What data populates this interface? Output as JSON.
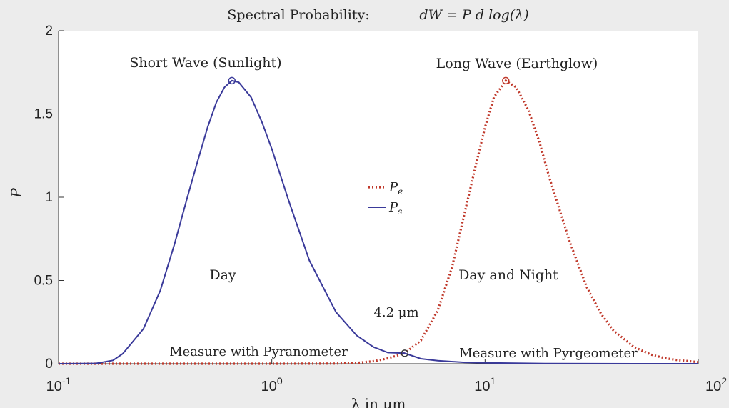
{
  "chart_data": {
    "type": "line",
    "title": "Spectral Probability:",
    "title_formula": "dW = P d log(λ)",
    "xlabel": "λ in μm",
    "ylabel": "P",
    "x_scale": "log",
    "xlim": [
      0.1,
      100
    ],
    "ylim": [
      0,
      2
    ],
    "x_ticks": [
      {
        "value": 0.1,
        "base": "10",
        "exp": "-1"
      },
      {
        "value": 1,
        "base": "10",
        "exp": "0"
      },
      {
        "value": 10,
        "base": "10",
        "exp": "1"
      },
      {
        "value": 100,
        "base": "10",
        "exp": "2"
      }
    ],
    "y_ticks": [
      "0",
      "0.5",
      "1",
      "1.5",
      "2"
    ],
    "grid": false,
    "legend_position": "center",
    "series": [
      {
        "name": "P_e",
        "legend_main": "P",
        "legend_sub": "e",
        "color": "#c0392b",
        "style": "dotted",
        "peak": {
          "x": 12.5,
          "y": 1.7
        },
        "points": [
          [
            0.1,
            0
          ],
          [
            0.15,
            0
          ],
          [
            0.2,
            0
          ],
          [
            0.3,
            0
          ],
          [
            0.5,
            0
          ],
          [
            1,
            0
          ],
          [
            2,
            0.001
          ],
          [
            2.5,
            0.005
          ],
          [
            3,
            0.015
          ],
          [
            3.5,
            0.032
          ],
          [
            4.2,
            0.063
          ],
          [
            5,
            0.14
          ],
          [
            6,
            0.32
          ],
          [
            7,
            0.58
          ],
          [
            8,
            0.9
          ],
          [
            9,
            1.18
          ],
          [
            10,
            1.42
          ],
          [
            11,
            1.6
          ],
          [
            12.5,
            1.7
          ],
          [
            14,
            1.66
          ],
          [
            16,
            1.52
          ],
          [
            18,
            1.33
          ],
          [
            20,
            1.12
          ],
          [
            25,
            0.73
          ],
          [
            30,
            0.46
          ],
          [
            35,
            0.3
          ],
          [
            40,
            0.2
          ],
          [
            50,
            0.1
          ],
          [
            60,
            0.055
          ],
          [
            70,
            0.033
          ],
          [
            80,
            0.022
          ],
          [
            100,
            0.01
          ]
        ]
      },
      {
        "name": "P_s",
        "legend_main": "P",
        "legend_sub": "s",
        "color": "#3a3a9a",
        "style": "solid",
        "peak": {
          "x": 0.65,
          "y": 1.7
        },
        "points": [
          [
            0.1,
            0
          ],
          [
            0.15,
            0.002
          ],
          [
            0.18,
            0.02
          ],
          [
            0.2,
            0.06
          ],
          [
            0.25,
            0.21
          ],
          [
            0.3,
            0.44
          ],
          [
            0.35,
            0.72
          ],
          [
            0.4,
            0.99
          ],
          [
            0.45,
            1.22
          ],
          [
            0.5,
            1.42
          ],
          [
            0.55,
            1.57
          ],
          [
            0.6,
            1.66
          ],
          [
            0.65,
            1.7
          ],
          [
            0.7,
            1.69
          ],
          [
            0.8,
            1.6
          ],
          [
            0.9,
            1.45
          ],
          [
            1,
            1.29
          ],
          [
            1.2,
            0.98
          ],
          [
            1.5,
            0.62
          ],
          [
            2,
            0.31
          ],
          [
            2.5,
            0.17
          ],
          [
            3,
            0.1
          ],
          [
            3.5,
            0.067
          ],
          [
            4.2,
            0.063
          ],
          [
            5,
            0.03
          ],
          [
            6,
            0.018
          ],
          [
            8,
            0.008
          ],
          [
            10,
            0.005
          ],
          [
            20,
            0.001
          ],
          [
            50,
            0
          ],
          [
            100,
            0
          ]
        ]
      }
    ],
    "crossing": {
      "x": 4.2,
      "y": 0.063
    },
    "annotations": {
      "short_wave": "Short Wave (Sunlight)",
      "long_wave": "Long Wave (Earthglow)",
      "day": "Day",
      "day_night": "Day and Night",
      "pyranometer": "Measure with Pyranometer",
      "pyrgeometer": "Measure with Pyrgeometer",
      "crossing_label": "4.2 μm"
    }
  }
}
